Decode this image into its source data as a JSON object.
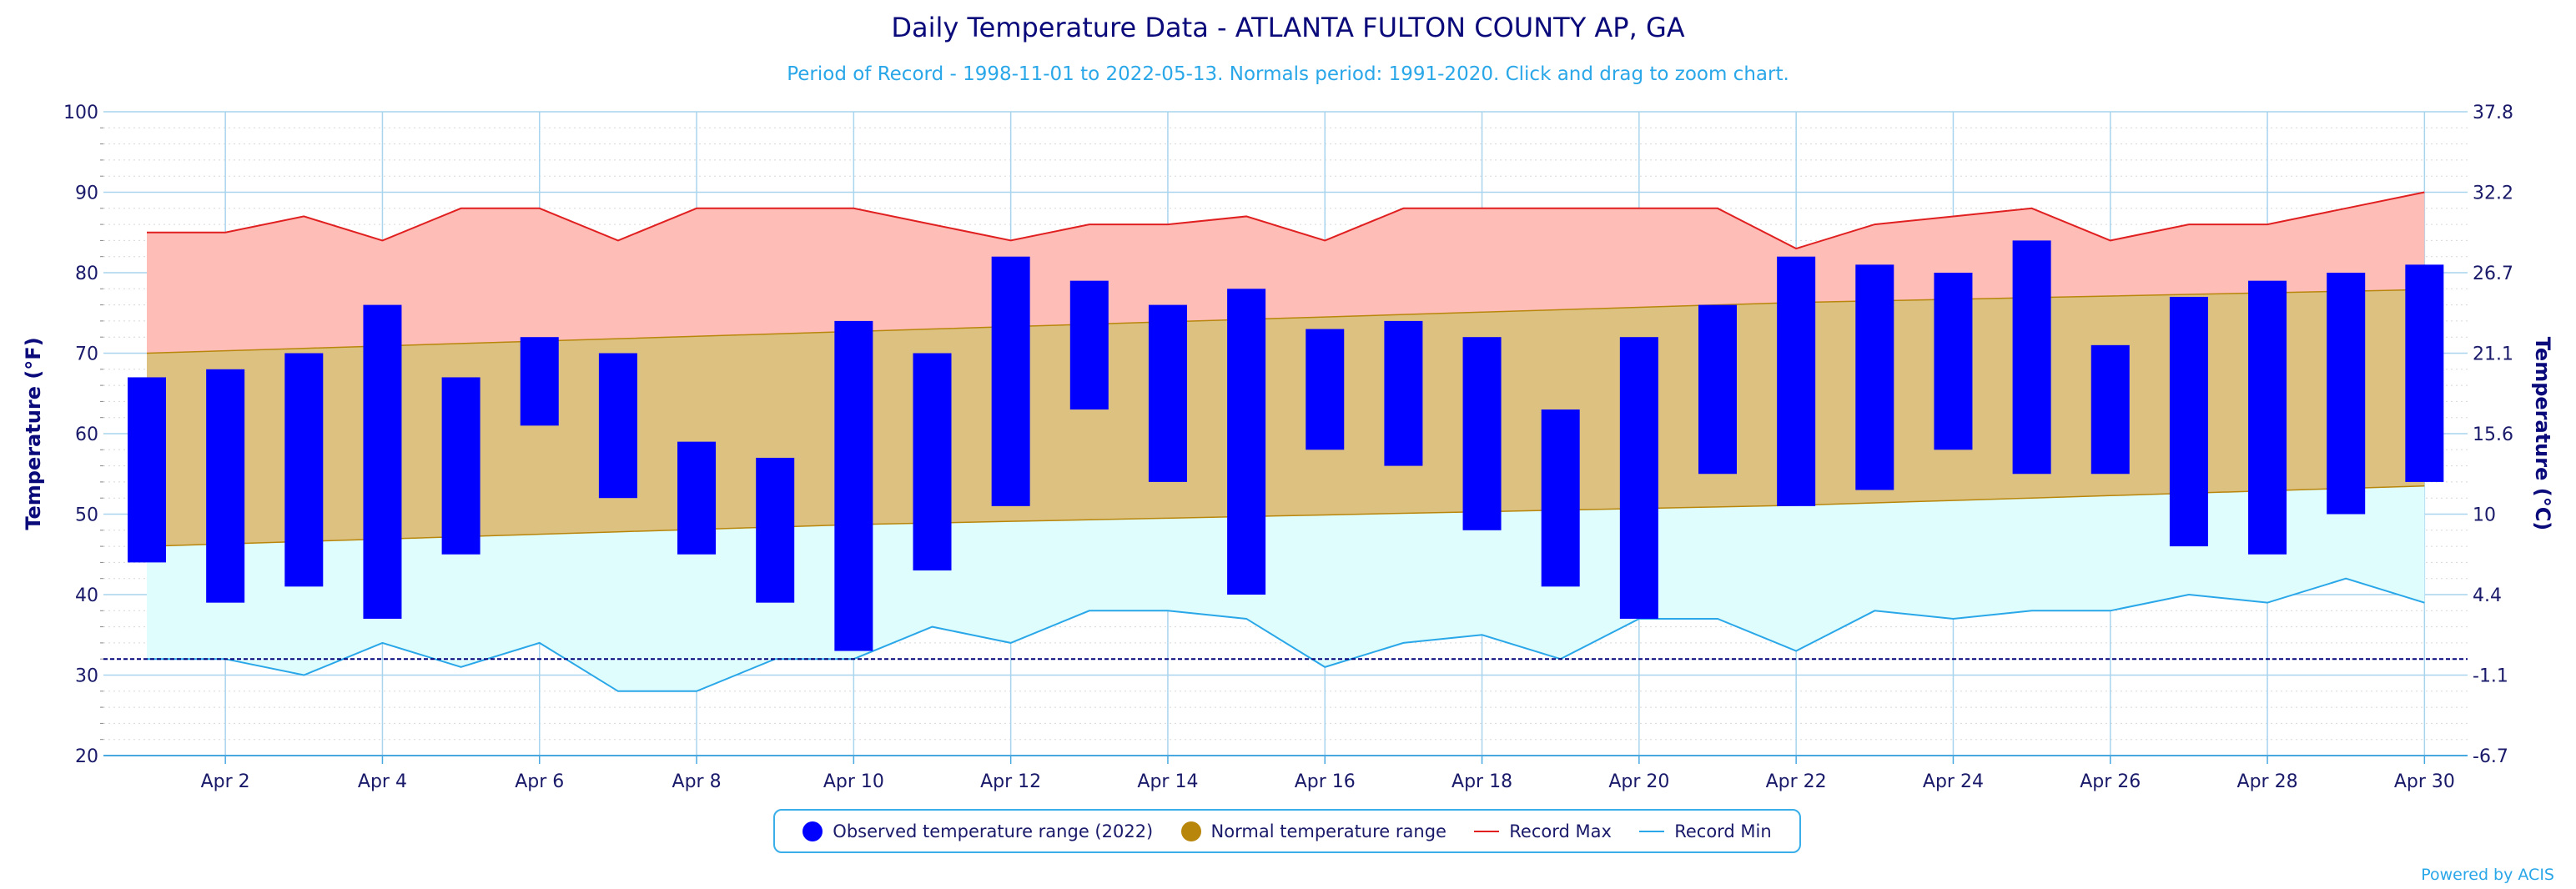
{
  "chart_data": {
    "type": "bar",
    "title": "Daily Temperature Data - ATLANTA FULTON COUNTY AP, GA",
    "subtitle": "Period of Record - 1998-11-01 to 2022-05-13. Normals period: 1991-2020. Click and drag to zoom chart.",
    "ylabel": "Temperature (°F)",
    "y2label": "Temperature (°C)",
    "ylim": [
      20,
      100
    ],
    "yticks": [
      "20",
      "30",
      "40",
      "50",
      "60",
      "70",
      "80",
      "90",
      "100"
    ],
    "y2ticks": [
      "-6.7",
      "-1.1",
      "4.4",
      "10",
      "15.6",
      "21.1",
      "26.7",
      "32.2",
      "37.8"
    ],
    "xtick_labels": [
      "Apr 2",
      "Apr 4",
      "Apr 6",
      "Apr 8",
      "Apr 10",
      "Apr 12",
      "Apr 14",
      "Apr 16",
      "Apr 18",
      "Apr 20",
      "Apr 22",
      "Apr 24",
      "Apr 26",
      "Apr 28",
      "Apr 30"
    ],
    "days": [
      1,
      2,
      3,
      4,
      5,
      6,
      7,
      8,
      9,
      10,
      11,
      12,
      13,
      14,
      15,
      16,
      17,
      18,
      19,
      20,
      21,
      22,
      23,
      24,
      25,
      26,
      27,
      28,
      29,
      30
    ],
    "grid": true,
    "legend_position": "bottom",
    "freeze_line": 32,
    "series": [
      {
        "name": "Observed temperature range (2022)",
        "low": [
          44,
          39,
          41,
          37,
          45,
          61,
          52,
          45,
          39,
          33,
          43,
          51,
          63,
          54,
          40,
          58,
          56,
          48,
          41,
          37,
          55,
          51,
          53,
          58,
          55,
          55,
          46,
          45,
          50,
          54
        ],
        "high": [
          67,
          68,
          70,
          76,
          67,
          72,
          70,
          59,
          57,
          74,
          70,
          82,
          79,
          76,
          78,
          73,
          74,
          72,
          63,
          72,
          76,
          82,
          81,
          80,
          84,
          71,
          77,
          79,
          80,
          81
        ]
      },
      {
        "name": "Normal temperature range",
        "low": [
          46,
          46.3,
          46.6,
          46.9,
          47.2,
          47.5,
          47.8,
          48.1,
          48.4,
          48.7,
          48.9,
          49.1,
          49.3,
          49.5,
          49.7,
          49.9,
          50.1,
          50.3,
          50.5,
          50.7,
          50.9,
          51.1,
          51.4,
          51.7,
          52,
          52.3,
          52.6,
          52.9,
          53.2,
          53.5
        ],
        "high": [
          70,
          70.3,
          70.6,
          70.9,
          71.2,
          71.5,
          71.8,
          72.1,
          72.4,
          72.7,
          73,
          73.3,
          73.6,
          73.9,
          74.2,
          74.5,
          74.8,
          75.1,
          75.4,
          75.7,
          76,
          76.3,
          76.5,
          76.7,
          76.9,
          77.1,
          77.3,
          77.5,
          77.7,
          77.9
        ]
      },
      {
        "name": "Record Max",
        "values": [
          85,
          85,
          87,
          84,
          88,
          88,
          84,
          88,
          88,
          88,
          86,
          84,
          86,
          86,
          87,
          84,
          88,
          88,
          88,
          88,
          88,
          83,
          86,
          87,
          88,
          84,
          86,
          86,
          88,
          90
        ]
      },
      {
        "name": "Record Min",
        "values": [
          32,
          32,
          30,
          34,
          31,
          34,
          28,
          28,
          32,
          32,
          36,
          34,
          38,
          38,
          37,
          31,
          34,
          35,
          32,
          37,
          37,
          33,
          38,
          37,
          38,
          38,
          40,
          39,
          42,
          39
        ]
      }
    ],
    "colors": {
      "observed": "#0000ff",
      "normal_fill": "#dcc181",
      "normal_line": "#b8860b",
      "record_max_line": "#e02020",
      "record_max_fill": "#ffbdb8",
      "record_min_line": "#2aa7e8",
      "record_min_fill": "#e0fdfd",
      "freeze_line": "#00007a"
    },
    "credit": "Powered by ACIS"
  }
}
